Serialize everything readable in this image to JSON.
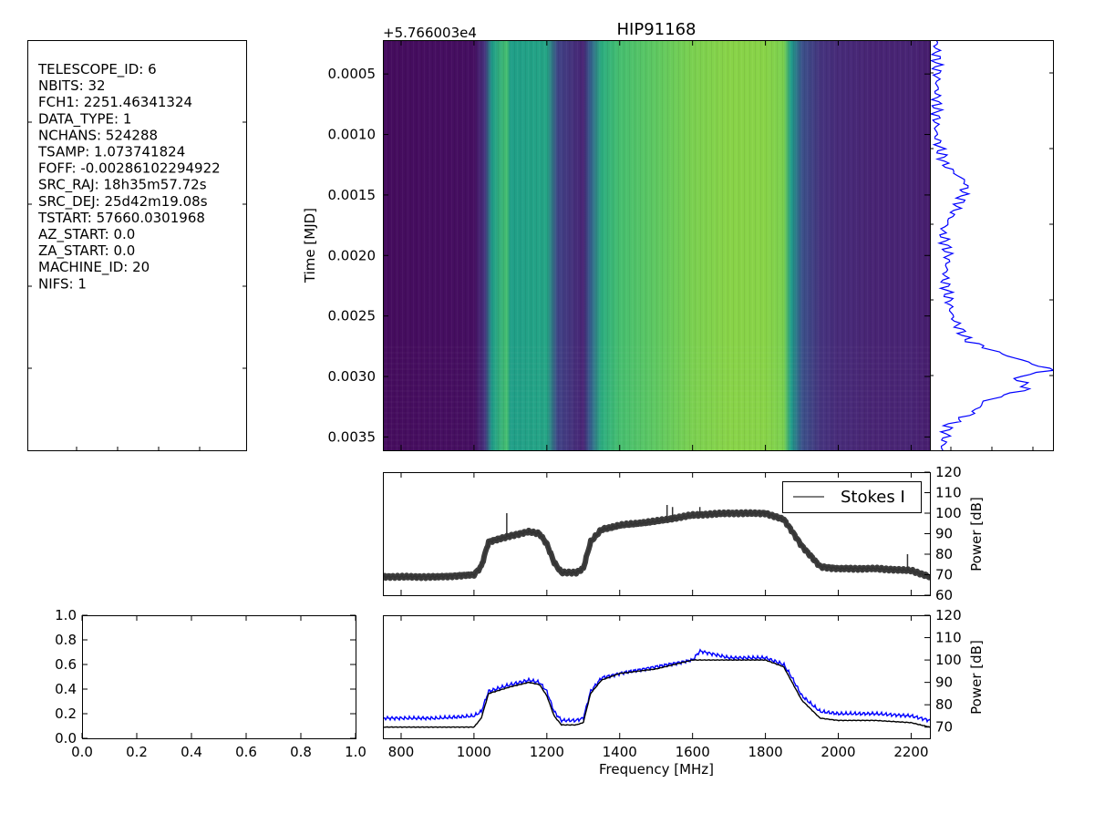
{
  "header": {
    "title": "HIP91168",
    "offset_label": "+5.766003e4"
  },
  "header_info": [
    "TELESCOPE_ID:  6",
    "NBITS:  32",
    "FCH1:  2251.46341324",
    "DATA_TYPE:  1",
    "NCHANS:  524288",
    "TSAMP:  1.073741824",
    "FOFF:  -0.00286102294922",
    "SRC_RAJ:  18h35m57.72s",
    "SRC_DEJ:  25d42m19.08s",
    "TSTART:  57660.0301968",
    "AZ_START:  0.0",
    "ZA_START:  0.0",
    "MACHINE_ID:  20",
    "NIFS:  1"
  ],
  "colors": {
    "spectrum_line": "#333333",
    "kurtosis_line": "#0000ff",
    "baseline_line": "#000000",
    "time_series_line": "#0000ff",
    "colormap": "viridis"
  },
  "chart_data": [
    {
      "type": "heatmap",
      "title": "HIP91168",
      "xlabel": "",
      "ylabel": "Time [MJD]",
      "y_offset_label": "+5.766003e4",
      "xlim": [
        750,
        2251.46
      ],
      "ylim": [
        0.00036,
        0.00022
      ],
      "y_ticks": [
        "0.0005",
        "0.0010",
        "0.0015",
        "0.0020",
        "0.0025",
        "0.0030",
        "0.0035"
      ],
      "y_tick_values": [
        0.0005,
        0.001,
        0.0015,
        0.002,
        0.0025,
        0.003,
        0.0035
      ],
      "ylim_data": [
        0.00022,
        0.00361
      ],
      "colormap": "viridis",
      "band_intensity": {
        "freq": [
          750,
          1000,
          1030,
          1050,
          1090,
          1100,
          1200,
          1230,
          1300,
          1320,
          1350,
          1400,
          1500,
          1600,
          1700,
          1800,
          1850,
          1870,
          1900,
          1950,
          2000,
          2100,
          2200,
          2251
        ],
        "level": [
          0.03,
          0.04,
          0.15,
          0.55,
          0.7,
          0.56,
          0.58,
          0.2,
          0.1,
          0.3,
          0.62,
          0.7,
          0.75,
          0.8,
          0.82,
          0.82,
          0.8,
          0.55,
          0.25,
          0.15,
          0.12,
          0.1,
          0.1,
          0.08
        ]
      }
    },
    {
      "type": "line",
      "title": "",
      "xlabel": "",
      "ylabel": "",
      "orientation": "vertical",
      "description_of_axes": "time series of integrated power versus time",
      "y": [
        0.00022,
        0.0005,
        0.001,
        0.00125,
        0.0014,
        0.00155,
        0.0018,
        0.002,
        0.0022,
        0.0025,
        0.0027,
        0.0028,
        0.0029,
        0.00295,
        0.003,
        0.0031,
        0.0032,
        0.0033,
        0.0034,
        0.0036
      ],
      "x": [
        0.05,
        0.06,
        0.05,
        0.12,
        0.3,
        0.25,
        0.1,
        0.15,
        0.12,
        0.18,
        0.3,
        0.55,
        0.85,
        1.0,
        0.7,
        0.8,
        0.45,
        0.35,
        0.15,
        0.1
      ],
      "xlim": [
        0,
        1
      ],
      "ylim": [
        0.00361,
        0.00022
      ]
    },
    {
      "type": "line",
      "title": "",
      "xlabel": "",
      "ylabel": "Power [dB]",
      "legend": [
        "Stokes I"
      ],
      "legend_position": "top-right",
      "xlim": [
        750,
        2251.46
      ],
      "ylim": [
        60,
        120
      ],
      "y_ticks": [
        60,
        70,
        80,
        90,
        100,
        110,
        120
      ],
      "series": [
        {
          "name": "Stokes I",
          "x": [
            750,
            800,
            900,
            1000,
            1020,
            1040,
            1060,
            1080,
            1100,
            1150,
            1180,
            1200,
            1220,
            1240,
            1280,
            1300,
            1320,
            1350,
            1400,
            1500,
            1600,
            1700,
            1800,
            1850,
            1870,
            1900,
            1950,
            2000,
            2100,
            2200,
            2251
          ],
          "y": [
            69,
            69,
            69,
            70,
            74,
            86,
            87,
            88,
            89,
            91,
            90,
            85,
            76,
            71,
            71,
            73,
            86,
            92,
            94,
            96,
            99,
            100,
            100,
            97,
            92,
            84,
            74,
            73,
            73,
            72,
            69
          ]
        }
      ]
    },
    {
      "type": "line",
      "title": "",
      "xlabel": "Frequency [MHz]",
      "ylabel": "Power [dB]",
      "xlim": [
        750,
        2251.46
      ],
      "ylim": [
        65,
        120
      ],
      "x_ticks": [
        800,
        1000,
        1200,
        1400,
        1600,
        1800,
        2000,
        2200
      ],
      "y_ticks": [
        70,
        80,
        90,
        100,
        110,
        120
      ],
      "series": [
        {
          "x": [
            750,
            800,
            900,
            1000,
            1020,
            1040,
            1060,
            1080,
            1100,
            1150,
            1180,
            1200,
            1220,
            1240,
            1280,
            1300,
            1320,
            1350,
            1400,
            1500,
            1600,
            1620,
            1700,
            1800,
            1850,
            1870,
            1900,
            1950,
            2000,
            2100,
            2200,
            2251
          ],
          "y": [
            74,
            74,
            74,
            75,
            77,
            86,
            87,
            88,
            89,
            91,
            90,
            86,
            77,
            73,
            73,
            74,
            86,
            92,
            94,
            97,
            100,
            104,
            101,
            101,
            98,
            93,
            84,
            77,
            76,
            76,
            75,
            73
          ]
        },
        {
          "x": [
            750,
            800,
            900,
            1000,
            1020,
            1040,
            1060,
            1080,
            1100,
            1150,
            1180,
            1200,
            1220,
            1240,
            1280,
            1300,
            1320,
            1350,
            1400,
            1500,
            1600,
            1700,
            1800,
            1850,
            1870,
            1900,
            1950,
            2000,
            2100,
            2200,
            2251
          ],
          "y": [
            70,
            70,
            70,
            70,
            74,
            85,
            86,
            87,
            88,
            90,
            89,
            84,
            75,
            71,
            71,
            72,
            85,
            91,
            94,
            96,
            100,
            100,
            100,
            97,
            91,
            82,
            74,
            73,
            73,
            72,
            70
          ]
        }
      ]
    },
    {
      "type": "line",
      "title": "",
      "xlabel": "",
      "ylabel": "",
      "xlim": [
        0,
        1
      ],
      "ylim": [
        0,
        1
      ],
      "x_ticks": [
        "0.0",
        "0.2",
        "0.4",
        "0.6",
        "0.8",
        "1.0"
      ],
      "y_ticks": [
        "0.0",
        "0.2",
        "0.4",
        "0.6",
        "0.8",
        "1.0"
      ],
      "series": []
    }
  ]
}
